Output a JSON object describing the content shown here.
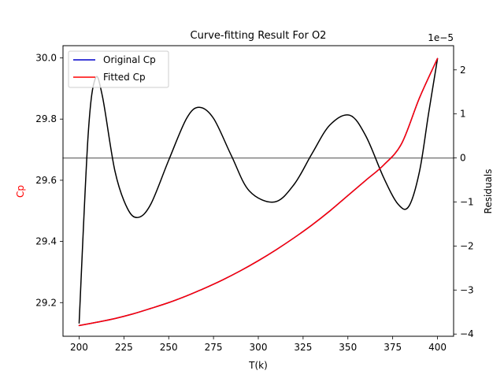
{
  "chart_data": {
    "type": "line",
    "title": "Curve-fitting Result For O2",
    "xlabel": "T(k)",
    "ylabel_left": "Cp",
    "ylabel_right": "Residuals",
    "ylabel_left_color": "#ff0000",
    "right_axis_offset_label": "1e−5",
    "xlim": [
      191,
      409
    ],
    "ylim_left": [
      29.09,
      30.04
    ],
    "ylim_right": [
      -4.05,
      2.55
    ],
    "x_ticks": [
      200,
      225,
      250,
      275,
      300,
      325,
      350,
      375,
      400
    ],
    "y_ticks_left": [
      29.2,
      29.4,
      29.6,
      29.8,
      30.0
    ],
    "y_ticks_left_labels": [
      "29.2",
      "29.4",
      "29.6",
      "29.8",
      "30.0"
    ],
    "y_ticks_right": [
      -4,
      -3,
      -2,
      -1,
      0,
      1,
      2
    ],
    "y_ticks_right_labels": [
      "−4",
      "−3",
      "−2",
      "−1",
      "0",
      "1",
      "2"
    ],
    "legend_position": "top-left",
    "legend": [
      "Original Cp",
      "Fitted Cp"
    ],
    "series": [
      {
        "name": "Original Cp",
        "axis": "left",
        "color": "#0000cc",
        "x": [
          200,
          210,
          220,
          230,
          240,
          250,
          260,
          270,
          280,
          290,
          300,
          310,
          320,
          330,
          340,
          350,
          360,
          370,
          380,
          390,
          400
        ],
        "y": [
          29.125,
          29.136,
          29.148,
          29.163,
          29.181,
          29.2,
          29.222,
          29.247,
          29.274,
          29.304,
          29.337,
          29.373,
          29.412,
          29.454,
          29.5,
          29.55,
          29.6,
          29.65,
          29.72,
          29.87,
          29.998
        ]
      },
      {
        "name": "Fitted Cp",
        "axis": "left",
        "color": "#ff0000",
        "x": [
          200,
          210,
          220,
          230,
          240,
          250,
          260,
          270,
          280,
          290,
          300,
          310,
          320,
          330,
          340,
          350,
          360,
          370,
          380,
          390,
          400
        ],
        "y": [
          29.125,
          29.136,
          29.148,
          29.163,
          29.181,
          29.2,
          29.222,
          29.247,
          29.274,
          29.304,
          29.337,
          29.373,
          29.412,
          29.454,
          29.5,
          29.55,
          29.6,
          29.65,
          29.72,
          29.87,
          29.998
        ]
      },
      {
        "axis": "right",
        "color": "#000000",
        "x": [
          200,
          205,
          209,
          213,
          220,
          227,
          233,
          240,
          250,
          260,
          267,
          275,
          285,
          295,
          309,
          320,
          330,
          340,
          351,
          360,
          370,
          378,
          384,
          390,
          395,
          400
        ],
        "y": [
          -3.75,
          0.5,
          1.8,
          1.4,
          -0.3,
          -1.15,
          -1.35,
          -1.05,
          -0.05,
          0.9,
          1.15,
          0.9,
          0.05,
          -0.75,
          -1.0,
          -0.6,
          0.1,
          0.75,
          0.97,
          0.5,
          -0.45,
          -1.05,
          -1.1,
          -0.3,
          1.0,
          2.25
        ]
      },
      {
        "axis": "right",
        "color": "#808080",
        "x": [
          191,
          409
        ],
        "y": [
          0,
          0
        ]
      }
    ]
  }
}
